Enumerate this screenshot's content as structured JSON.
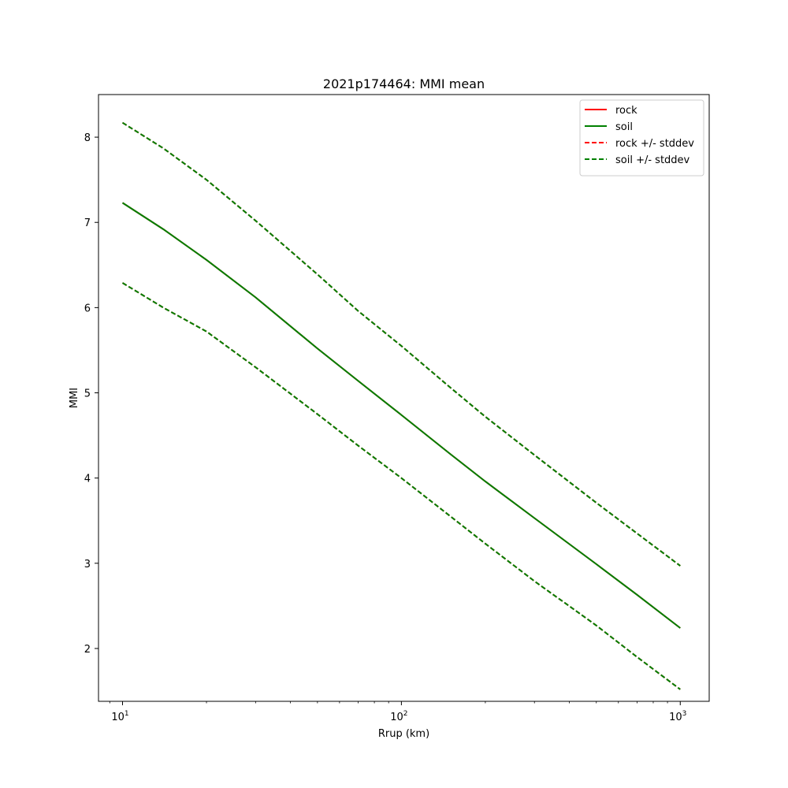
{
  "chart_data": {
    "type": "line",
    "title": "2021p174464: MMI mean",
    "xlabel": "Rrup (km)",
    "ylabel": "MMI",
    "xscale": "log",
    "xlim": [
      8.2,
      1270
    ],
    "ylim": [
      1.38,
      8.5
    ],
    "x_ticks": [
      {
        "value": 10,
        "base": "10",
        "exp": "1"
      },
      {
        "value": 100,
        "base": "10",
        "exp": "2"
      },
      {
        "value": 1000,
        "base": "10",
        "exp": "3"
      }
    ],
    "y_ticks": [
      2,
      3,
      4,
      5,
      6,
      7,
      8
    ],
    "grid": false,
    "legend_position": "top-right",
    "x": [
      10,
      14,
      20,
      30,
      50,
      70,
      100,
      150,
      200,
      300,
      500,
      700,
      1000
    ],
    "series": [
      {
        "name": "rock",
        "style": "solid",
        "color": "#ff0000",
        "values": [
          7.23,
          6.92,
          6.56,
          6.12,
          5.52,
          5.14,
          4.74,
          4.28,
          3.96,
          3.53,
          2.99,
          2.63,
          2.24
        ]
      },
      {
        "name": "soil",
        "style": "solid",
        "color": "#008000",
        "values": [
          7.23,
          6.92,
          6.56,
          6.12,
          5.52,
          5.14,
          4.74,
          4.28,
          3.96,
          3.53,
          2.99,
          2.63,
          2.24
        ]
      },
      {
        "name": "rock +/- stddev",
        "style": "dashed",
        "color": "#ff0000",
        "values": [
          8.17,
          7.87,
          7.5,
          7.02,
          6.39,
          5.96,
          5.55,
          5.06,
          4.72,
          4.27,
          3.71,
          3.35,
          2.97
        ]
      },
      {
        "name": "rock +/- stddev",
        "style": "dashed",
        "color": "#ff0000",
        "legend": false,
        "values": [
          6.29,
          6.0,
          5.72,
          5.3,
          4.75,
          4.38,
          4.0,
          3.55,
          3.23,
          2.79,
          2.27,
          1.9,
          1.52
        ]
      },
      {
        "name": "soil +/- stddev",
        "style": "dashed",
        "color": "#008000",
        "values": [
          8.17,
          7.87,
          7.5,
          7.02,
          6.39,
          5.96,
          5.55,
          5.06,
          4.72,
          4.27,
          3.71,
          3.35,
          2.97
        ]
      },
      {
        "name": "soil +/- stddev",
        "style": "dashed",
        "color": "#008000",
        "legend": false,
        "values": [
          6.29,
          6.0,
          5.72,
          5.3,
          4.75,
          4.38,
          4.0,
          3.55,
          3.23,
          2.79,
          2.27,
          1.9,
          1.52
        ]
      }
    ]
  }
}
